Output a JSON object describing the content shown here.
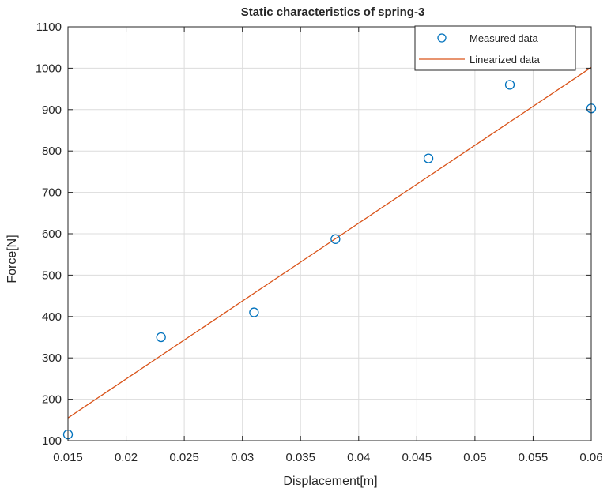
{
  "chart_data": {
    "type": "scatter",
    "title": "Static characteristics of spring-3",
    "xlabel": "Displacement[m]",
    "ylabel": "Force[N]",
    "xlim": [
      0.015,
      0.06
    ],
    "ylim": [
      100,
      1100
    ],
    "xticks": [
      0.015,
      0.02,
      0.025,
      0.03,
      0.035,
      0.04,
      0.045,
      0.05,
      0.055,
      0.06
    ],
    "yticks": [
      100,
      200,
      300,
      400,
      500,
      600,
      700,
      800,
      900,
      1000,
      1100
    ],
    "xtick_labels": [
      "0.015",
      "0.02",
      "0.025",
      "0.03",
      "0.035",
      "0.04",
      "0.045",
      "0.05",
      "0.055",
      "0.06"
    ],
    "ytick_labels": [
      "100",
      "200",
      "300",
      "400",
      "500",
      "600",
      "700",
      "800",
      "900",
      "1000",
      "1100"
    ],
    "grid": true,
    "legend_position": "top-right",
    "series": [
      {
        "name": "Measured data",
        "kind": "markers",
        "marker": "circle",
        "color": "#0072bd",
        "x": [
          0.015,
          0.023,
          0.031,
          0.038,
          0.046,
          0.053,
          0.06
        ],
        "y": [
          115,
          350,
          410,
          587,
          782,
          960,
          903
        ]
      },
      {
        "name": "Linearized data",
        "kind": "line",
        "color": "#d95319",
        "x": [
          0.015,
          0.06
        ],
        "y": [
          155,
          1002
        ]
      }
    ]
  }
}
